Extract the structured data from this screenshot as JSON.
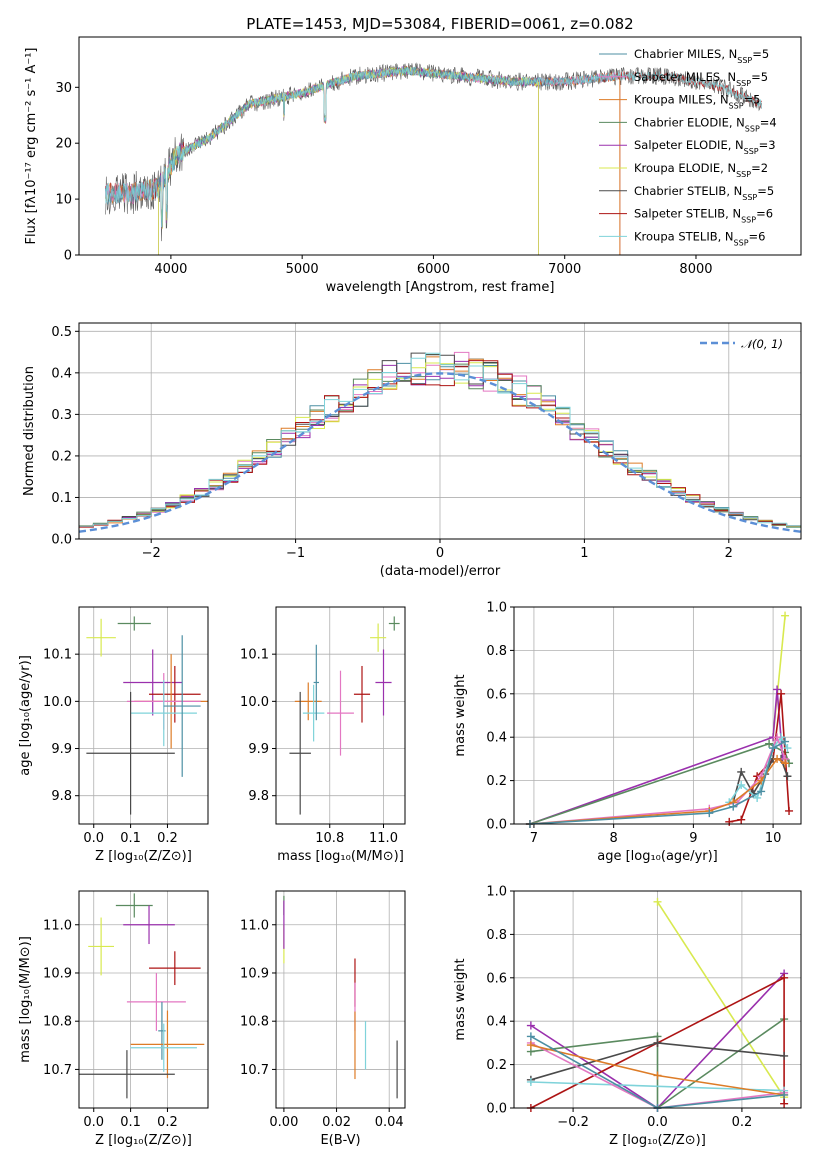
{
  "colors": {
    "Chabrier MILES": "#4c8fa3",
    "Salpeter MILES": "#e377c2",
    "Kroupa MILES": "#dd7c27",
    "Chabrier ELODIE": "#5a8a5f",
    "Salpeter ELODIE": "#9a30ad",
    "Kroupa ELODIE": "#d8e94f",
    "Chabrier STELIB": "#4a4a4a",
    "Salpeter STELIB": "#ad1414",
    "Kroupa STELIB": "#7fd3da",
    "normal": "#5c8fd6"
  },
  "chart_data": [
    {
      "id": "spectrum",
      "type": "line",
      "title": "PLATE=1453, MJD=53084, FIBERID=0061, z=0.082",
      "xlabel": "wavelength [Angstrom, rest frame]",
      "ylabel": "Flux [fλ10⁻¹⁷ erg cm⁻² s⁻¹ A⁻¹]",
      "xlim": [
        3300,
        8800
      ],
      "ylim": [
        0,
        39
      ],
      "xticks": [
        4000,
        5000,
        6000,
        7000,
        8000
      ],
      "yticks": [
        0,
        10,
        20,
        30
      ],
      "legend_position": "top-right",
      "legend": [
        {
          "name": "Chabrier MILES",
          "sub": "SSP",
          "n": "5"
        },
        {
          "name": "Salpeter MILES",
          "sub": "SSP",
          "n": "5"
        },
        {
          "name": "Kroupa MILES",
          "sub": "SSP",
          "n": "5"
        },
        {
          "name": "Chabrier ELODIE",
          "sub": "SSP",
          "n": "4"
        },
        {
          "name": "Salpeter ELODIE",
          "sub": "SSP",
          "n": "3"
        },
        {
          "name": "Kroupa ELODIE",
          "sub": "SSP",
          "n": "2"
        },
        {
          "name": "Chabrier STELIB",
          "sub": "SSP",
          "n": "5"
        },
        {
          "name": "Salpeter STELIB",
          "sub": "SSP",
          "n": "6"
        },
        {
          "name": "Kroupa STELIB",
          "sub": "SSP",
          "n": "6"
        }
      ],
      "continuum": [
        [
          3500,
          11
        ],
        [
          3700,
          11
        ],
        [
          3900,
          12
        ],
        [
          4050,
          18
        ],
        [
          4300,
          21
        ],
        [
          4600,
          27
        ],
        [
          5000,
          29
        ],
        [
          5400,
          32
        ],
        [
          5800,
          33
        ],
        [
          6200,
          32
        ],
        [
          6600,
          31
        ],
        [
          7000,
          31
        ],
        [
          7400,
          32
        ],
        [
          7800,
          32
        ],
        [
          8200,
          30
        ],
        [
          8500,
          27
        ]
      ],
      "series_ranges": [
        {
          "model": "Chabrier MILES",
          "x": [
            3500,
            7400
          ]
        },
        {
          "model": "Salpeter MILES",
          "x": [
            3500,
            7400
          ]
        },
        {
          "model": "Kroupa MILES",
          "x": [
            3500,
            7400
          ]
        },
        {
          "model": "Chabrier ELODIE",
          "x": [
            3900,
            6800
          ]
        },
        {
          "model": "Salpeter ELODIE",
          "x": [
            3900,
            6800
          ]
        },
        {
          "model": "Kroupa ELODIE",
          "x": [
            3900,
            6800
          ]
        },
        {
          "model": "Chabrier STELIB",
          "x": [
            3500,
            8500
          ]
        },
        {
          "model": "Salpeter STELIB",
          "x": [
            3500,
            8500
          ]
        },
        {
          "model": "Kroupa STELIB",
          "x": [
            3500,
            8500
          ]
        }
      ]
    },
    {
      "id": "residuals",
      "type": "bar",
      "xlabel": "(data-model)/error",
      "ylabel": "Normed distribution",
      "xlim": [
        -2.5,
        2.5
      ],
      "ylim": [
        0,
        0.52
      ],
      "xticks": [
        -2,
        -1,
        0,
        1,
        2
      ],
      "yticks": [
        0.0,
        0.1,
        0.2,
        0.3,
        0.4,
        0.5
      ],
      "legend_position": "top-right",
      "legend": [
        {
          "name": "𝒩(0, 1)",
          "style": "dashed"
        }
      ],
      "bin_width": 0.1,
      "bin_start": -2.5,
      "models": [
        "Chabrier MILES",
        "Salpeter MILES",
        "Kroupa MILES",
        "Chabrier ELODIE",
        "Salpeter ELODIE",
        "Kroupa ELODIE",
        "Chabrier STELIB",
        "Salpeter STELIB",
        "Kroupa STELIB"
      ]
    },
    {
      "id": "age-vs-Z",
      "type": "scatter",
      "xlabel": "Z [log₁₀(Z/Z⊙)]",
      "ylabel": "age  [log₁₀(age/yr)]",
      "xlim": [
        -0.04,
        0.31
      ],
      "ylim": [
        9.74,
        10.2
      ],
      "xticks": [
        0.0,
        0.1,
        0.2
      ],
      "yticks": [
        9.8,
        9.9,
        10.0,
        10.1
      ],
      "points": [
        {
          "model": "Kroupa ELODIE",
          "x": 0.02,
          "y": 10.135,
          "ex": 0.04,
          "ey": 0.04
        },
        {
          "model": "Chabrier ELODIE",
          "x": 0.11,
          "y": 10.165,
          "ex": 0.045,
          "ey": 0.015
        },
        {
          "model": "Salpeter ELODIE",
          "x": 0.16,
          "y": 10.04,
          "ex": 0.08,
          "ey": 0.07
        },
        {
          "model": "Salpeter STELIB",
          "x": 0.22,
          "y": 10.015,
          "ex": 0.07,
          "ey": 0.06
        },
        {
          "model": "Kroupa MILES",
          "x": 0.21,
          "y": 10.0,
          "ex": 0.1,
          "ey": 0.1
        },
        {
          "model": "Salpeter MILES",
          "x": 0.19,
          "y": 10.0,
          "ex": 0.1,
          "ey": 0.06
        },
        {
          "model": "Kroupa STELIB",
          "x": 0.19,
          "y": 9.975,
          "ex": 0.09,
          "ey": 0.07
        },
        {
          "model": "Chabrier MILES",
          "x": 0.24,
          "y": 9.99,
          "ex": 0.05,
          "ey": 0.15
        },
        {
          "model": "Chabrier STELIB",
          "x": 0.1,
          "y": 9.89,
          "ex": 0.12,
          "ey": 0.13
        }
      ]
    },
    {
      "id": "age-vs-mass",
      "type": "scatter",
      "xlabel": "mass [log₁₀(M/M⊙)]",
      "ylabel": "",
      "xlim": [
        10.6,
        11.08
      ],
      "ylim": [
        9.74,
        10.2
      ],
      "xticks": [
        10.8,
        11.0
      ],
      "yticks": [
        9.8,
        9.9,
        10.0,
        10.1
      ],
      "points": [
        {
          "model": "Kroupa ELODIE",
          "x": 10.98,
          "y": 10.135,
          "ex": 0.03,
          "ey": 0.03
        },
        {
          "model": "Chabrier ELODIE",
          "x": 11.04,
          "y": 10.165,
          "ex": 0.02,
          "ey": 0.015
        },
        {
          "model": "Salpeter ELODIE",
          "x": 11.0,
          "y": 10.04,
          "ex": 0.03,
          "ey": 0.07
        },
        {
          "model": "Salpeter STELIB",
          "x": 10.92,
          "y": 10.015,
          "ex": 0.03,
          "ey": 0.06
        },
        {
          "model": "Kroupa MILES",
          "x": 10.72,
          "y": 10.0,
          "ex": 0.05,
          "ey": 0.04
        },
        {
          "model": "Salpeter MILES",
          "x": 10.84,
          "y": 9.975,
          "ex": 0.05,
          "ey": 0.09
        },
        {
          "model": "Kroupa STELIB",
          "x": 10.74,
          "y": 9.975,
          "ex": 0.04,
          "ey": 0.06
        },
        {
          "model": "Chabrier MILES",
          "x": 10.75,
          "y": 10.04,
          "ex": 0.01,
          "ey": 0.08
        },
        {
          "model": "Chabrier STELIB",
          "x": 10.69,
          "y": 9.89,
          "ex": 0.04,
          "ey": 0.13
        }
      ]
    },
    {
      "id": "mass-weight-vs-age",
      "type": "line",
      "xlabel": "age  [log₁₀(age/yr)]",
      "ylabel": "mass weight",
      "xlim": [
        6.75,
        10.35
      ],
      "ylim": [
        0.0,
        1.0
      ],
      "xticks": [
        7,
        8,
        9,
        10
      ],
      "yticks": [
        0.0,
        0.2,
        0.4,
        0.6,
        0.8,
        1.0
      ],
      "series": [
        {
          "model": "Kroupa ELODIE",
          "points": [
            [
              10.0,
              0.4
            ],
            [
              10.15,
              0.96
            ]
          ]
        },
        {
          "model": "Salpeter ELODIE",
          "points": [
            [
              6.95,
              0.0
            ],
            [
              10.0,
              0.4
            ],
            [
              10.05,
              0.62
            ],
            [
              10.12,
              0.3
            ]
          ]
        },
        {
          "model": "Chabrier ELODIE",
          "points": [
            [
              6.95,
              0.0
            ],
            [
              9.95,
              0.37
            ],
            [
              10.15,
              0.33
            ],
            [
              10.2,
              0.28
            ]
          ]
        },
        {
          "model": "Salpeter STELIB",
          "points": [
            [
              9.45,
              0.01
            ],
            [
              9.6,
              0.02
            ],
            [
              9.8,
              0.22
            ],
            [
              10.0,
              0.3
            ],
            [
              10.1,
              0.6
            ],
            [
              10.2,
              0.06
            ]
          ]
        },
        {
          "model": "Chabrier STELIB",
          "points": [
            [
              9.5,
              0.1
            ],
            [
              9.6,
              0.24
            ],
            [
              9.75,
              0.14
            ],
            [
              9.9,
              0.23
            ],
            [
              10.0,
              0.3
            ],
            [
              10.1,
              0.3
            ],
            [
              10.18,
              0.22
            ]
          ]
        },
        {
          "model": "Kroupa STELIB",
          "points": [
            [
              9.45,
              0.1
            ],
            [
              9.6,
              0.18
            ],
            [
              9.8,
              0.12
            ],
            [
              10.0,
              0.35
            ],
            [
              10.1,
              0.4
            ],
            [
              10.18,
              0.35
            ]
          ]
        },
        {
          "model": "Salpeter MILES",
          "points": [
            [
              6.95,
              0.0
            ],
            [
              9.2,
              0.07
            ],
            [
              9.55,
              0.1
            ],
            [
              9.85,
              0.22
            ],
            [
              10.05,
              0.4
            ],
            [
              10.15,
              0.3
            ]
          ]
        },
        {
          "model": "Kroupa MILES",
          "points": [
            [
              6.95,
              0.0
            ],
            [
              9.2,
              0.06
            ],
            [
              9.5,
              0.1
            ],
            [
              9.85,
              0.2
            ],
            [
              10.05,
              0.3
            ],
            [
              10.15,
              0.28
            ]
          ]
        },
        {
          "model": "Chabrier MILES",
          "points": [
            [
              6.95,
              0.0
            ],
            [
              9.2,
              0.05
            ],
            [
              9.5,
              0.08
            ],
            [
              9.85,
              0.15
            ],
            [
              10.0,
              0.35
            ],
            [
              10.15,
              0.38
            ]
          ]
        }
      ]
    },
    {
      "id": "mass-vs-Z",
      "type": "scatter",
      "xlabel": "Z [log₁₀(Z/Z⊙)]",
      "ylabel": "mass [log₁₀(M/M⊙)]",
      "xlim": [
        -0.04,
        0.31
      ],
      "ylim": [
        10.62,
        11.07
      ],
      "xticks": [
        0.0,
        0.1,
        0.2
      ],
      "yticks": [
        10.7,
        10.8,
        10.9,
        11.0
      ],
      "points": [
        {
          "model": "Kroupa ELODIE",
          "x": 0.02,
          "y": 10.955,
          "ex": 0.035,
          "ey": 0.06
        },
        {
          "model": "Chabrier ELODIE",
          "x": 0.11,
          "y": 11.04,
          "ex": 0.05,
          "ey": 0.025
        },
        {
          "model": "Salpeter ELODIE",
          "x": 0.15,
          "y": 11.0,
          "ex": 0.07,
          "ey": 0.04
        },
        {
          "model": "Salpeter STELIB",
          "x": 0.22,
          "y": 10.91,
          "ex": 0.07,
          "ey": 0.035
        },
        {
          "model": "Salpeter MILES",
          "x": 0.17,
          "y": 10.84,
          "ex": 0.08,
          "ey": 0.06
        },
        {
          "model": "Chabrier MILES",
          "x": 0.185,
          "y": 10.78,
          "ex": 0.01,
          "ey": 0.06
        },
        {
          "model": "Kroupa MILES",
          "x": 0.2,
          "y": 10.752,
          "ex": 0.1,
          "ey": 0.07
        },
        {
          "model": "Kroupa STELIB",
          "x": 0.19,
          "y": 10.745,
          "ex": 0.09,
          "ey": 0.05
        },
        {
          "model": "Chabrier STELIB",
          "x": 0.09,
          "y": 10.69,
          "ex": 0.13,
          "ey": 0.05
        }
      ]
    },
    {
      "id": "mass-vs-EBV",
      "type": "scatter",
      "xlabel": "E(B-V)",
      "ylabel": "",
      "xlim": [
        -0.003,
        0.046
      ],
      "ylim": [
        10.62,
        11.07
      ],
      "xticks": [
        0.0,
        0.02,
        0.04
      ],
      "yticks": [
        10.7,
        10.8,
        10.9,
        11.0
      ],
      "points": [
        {
          "model": "Kroupa ELODIE",
          "x": 0.0,
          "y": 10.96,
          "ex": 0.0,
          "ey": 0.04
        },
        {
          "model": "Chabrier ELODIE",
          "x": 0.0,
          "y": 11.04,
          "ex": 0.0,
          "ey": 0.02
        },
        {
          "model": "Salpeter ELODIE",
          "x": 0.0,
          "y": 11.0,
          "ex": 0.0,
          "ey": 0.05
        },
        {
          "model": "Salpeter STELIB",
          "x": 0.027,
          "y": 10.88,
          "ex": 0.0,
          "ey": 0.05
        },
        {
          "model": "Salpeter MILES",
          "x": 0.027,
          "y": 10.83,
          "ex": 0.0,
          "ey": 0.05
        },
        {
          "model": "Kroupa MILES",
          "x": 0.027,
          "y": 10.75,
          "ex": 0.0,
          "ey": 0.07
        },
        {
          "model": "Kroupa STELIB",
          "x": 0.031,
          "y": 10.75,
          "ex": 0.0,
          "ey": 0.05
        },
        {
          "model": "Chabrier STELIB",
          "x": 0.043,
          "y": 10.7,
          "ex": 0.0,
          "ey": 0.06
        }
      ]
    },
    {
      "id": "mass-weight-vs-Z",
      "type": "line",
      "xlabel": "Z [log₁₀(Z/Z⊙)]",
      "ylabel": "mass weight",
      "xlim": [
        -0.34,
        0.34
      ],
      "ylim": [
        0.0,
        1.0
      ],
      "xticks": [
        -0.2,
        0.0,
        0.2
      ],
      "yticks": [
        0.0,
        0.2,
        0.4,
        0.6,
        0.8,
        1.0
      ],
      "series": [
        {
          "model": "Kroupa ELODIE",
          "points": [
            [
              0.0,
              0.95
            ],
            [
              0.3,
              0.05
            ]
          ]
        },
        {
          "model": "Salpeter ELODIE",
          "points": [
            [
              -0.3,
              0.38
            ],
            [
              0.0,
              0.0
            ],
            [
              0.3,
              0.62
            ]
          ]
        },
        {
          "model": "Chabrier ELODIE",
          "points": [
            [
              -0.3,
              0.26
            ],
            [
              0.0,
              0.33
            ],
            [
              0.0,
              0.0
            ],
            [
              0.3,
              0.41
            ]
          ]
        },
        {
          "model": "Salpeter STELIB",
          "points": [
            [
              -0.3,
              0.0
            ],
            [
              0.0,
              0.3
            ],
            [
              0.3,
              0.6
            ],
            [
              0.3,
              0.02
            ]
          ]
        },
        {
          "model": "Chabrier STELIB",
          "points": [
            [
              -0.3,
              0.13
            ],
            [
              0.0,
              0.3
            ],
            [
              0.3,
              0.24
            ]
          ]
        },
        {
          "model": "Kroupa STELIB",
          "points": [
            [
              -0.3,
              0.12
            ],
            [
              0.3,
              0.08
            ]
          ]
        },
        {
          "model": "Salpeter MILES",
          "points": [
            [
              -0.3,
              0.3
            ],
            [
              0.0,
              0.0
            ],
            [
              0.3,
              0.07
            ]
          ]
        },
        {
          "model": "Kroupa MILES",
          "points": [
            [
              -0.3,
              0.29
            ],
            [
              0.0,
              0.15
            ],
            [
              0.3,
              0.06
            ]
          ]
        },
        {
          "model": "Chabrier MILES",
          "points": [
            [
              -0.3,
              0.33
            ],
            [
              0.0,
              0.0
            ],
            [
              0.3,
              0.06
            ]
          ]
        }
      ]
    }
  ]
}
